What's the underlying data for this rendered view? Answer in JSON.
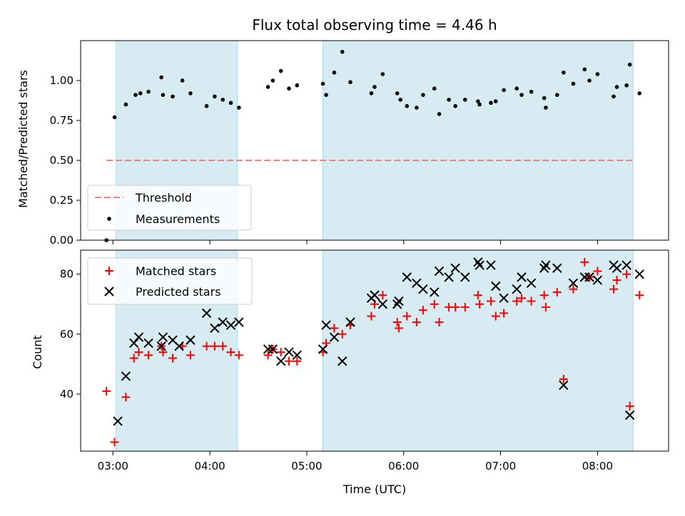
{
  "chart_data": {
    "type": "scatter",
    "title": "Flux total observing time = 4.46 h",
    "xlabel": "Time (UTC)",
    "x_tick_labels": [
      "03:00",
      "04:00",
      "05:00",
      "06:00",
      "07:00",
      "08:00"
    ],
    "x_ticks": [
      "03:00",
      "04:00",
      "05:00",
      "06:00",
      "07:00",
      "08:00"
    ],
    "xlim": [
      "02:40",
      "08:44"
    ],
    "shaded_intervals": [
      [
        "03:02",
        "04:17"
      ],
      [
        "05:10",
        "08:22"
      ]
    ],
    "shade_color": "#add8e6",
    "top_panel": {
      "ylabel": "Matched/Predicted stars",
      "ylim": [
        0,
        1.25
      ],
      "y_tick_labels": [
        "0.00",
        "0.25",
        "0.50",
        "0.75",
        "1.00"
      ],
      "y_ticks": [
        0,
        0.25,
        0.5,
        0.75,
        1.0
      ],
      "threshold": {
        "name": "Threshold",
        "value": 0.5,
        "x_range": [
          "02:56",
          "08:22"
        ],
        "color": "#f08080"
      },
      "legend": {
        "placement": "lower-left",
        "entries": [
          "Threshold",
          "Measurements"
        ]
      },
      "series": [
        {
          "name": "Measurements",
          "color": "#000000",
          "marker": "dot",
          "points": [
            [
              "02:56",
              0.0
            ],
            [
              "03:01",
              0.77
            ],
            [
              "03:08",
              0.85
            ],
            [
              "03:14",
              0.91
            ],
            [
              "03:17",
              0.92
            ],
            [
              "03:22",
              0.93
            ],
            [
              "03:30",
              1.02
            ],
            [
              "03:31",
              0.91
            ],
            [
              "03:37",
              0.9
            ],
            [
              "03:43",
              1.0
            ],
            [
              "03:48",
              0.92
            ],
            [
              "03:58",
              0.84
            ],
            [
              "04:03",
              0.9
            ],
            [
              "04:08",
              0.88
            ],
            [
              "04:13",
              0.86
            ],
            [
              "04:18",
              0.83
            ],
            [
              "04:36",
              0.96
            ],
            [
              "04:39",
              1.0
            ],
            [
              "04:44",
              1.06
            ],
            [
              "04:49",
              0.95
            ],
            [
              "04:54",
              0.97
            ],
            [
              "05:10",
              0.98
            ],
            [
              "05:12",
              0.91
            ],
            [
              "05:17",
              1.05
            ],
            [
              "05:22",
              1.18
            ],
            [
              "05:27",
              0.99
            ],
            [
              "05:40",
              0.92
            ],
            [
              "05:42",
              0.96
            ],
            [
              "05:47",
              1.04
            ],
            [
              "05:56",
              0.92
            ],
            [
              "05:58",
              0.88
            ],
            [
              "06:02",
              0.84
            ],
            [
              "06:08",
              0.83
            ],
            [
              "06:12",
              0.91
            ],
            [
              "06:19",
              0.95
            ],
            [
              "06:22",
              0.79
            ],
            [
              "06:28",
              0.88
            ],
            [
              "06:32",
              0.84
            ],
            [
              "06:38",
              0.88
            ],
            [
              "06:46",
              0.87
            ],
            [
              "06:47",
              0.85
            ],
            [
              "06:54",
              0.86
            ],
            [
              "06:57",
              0.87
            ],
            [
              "07:02",
              0.94
            ],
            [
              "07:10",
              0.95
            ],
            [
              "07:13",
              0.91
            ],
            [
              "07:19",
              0.93
            ],
            [
              "07:27",
              0.89
            ],
            [
              "07:28",
              0.83
            ],
            [
              "07:35",
              0.91
            ],
            [
              "07:39",
              1.05
            ],
            [
              "07:45",
              0.98
            ],
            [
              "07:52",
              1.07
            ],
            [
              "07:55",
              1.0
            ],
            [
              "08:00",
              1.04
            ],
            [
              "08:10",
              0.9
            ],
            [
              "08:12",
              0.96
            ],
            [
              "08:18",
              0.97
            ],
            [
              "08:20",
              1.1
            ],
            [
              "08:26",
              0.92
            ]
          ]
        }
      ]
    },
    "bottom_panel": {
      "ylabel": "Count",
      "ylim": [
        21,
        88
      ],
      "y_tick_labels": [
        "40",
        "60",
        "80"
      ],
      "y_ticks": [
        40,
        60,
        80
      ],
      "legend": {
        "placement": "upper-left",
        "entries": [
          "Matched stars",
          "Predicted stars"
        ]
      },
      "series": [
        {
          "name": "Matched stars",
          "color": "#ff0000",
          "marker": "plus",
          "points": [
            [
              "02:56",
              41
            ],
            [
              "03:01",
              24
            ],
            [
              "03:08",
              39
            ],
            [
              "03:13",
              52
            ],
            [
              "03:16",
              54
            ],
            [
              "03:22",
              53
            ],
            [
              "03:30",
              56
            ],
            [
              "03:31",
              54
            ],
            [
              "03:37",
              52
            ],
            [
              "03:43",
              56
            ],
            [
              "03:48",
              53
            ],
            [
              "03:58",
              56
            ],
            [
              "04:03",
              56
            ],
            [
              "04:08",
              56
            ],
            [
              "04:13",
              54
            ],
            [
              "04:18",
              53
            ],
            [
              "04:36",
              53
            ],
            [
              "04:39",
              55
            ],
            [
              "04:44",
              54
            ],
            [
              "04:49",
              51
            ],
            [
              "04:54",
              51
            ],
            [
              "05:10",
              54
            ],
            [
              "05:12",
              57
            ],
            [
              "05:17",
              62
            ],
            [
              "05:22",
              60
            ],
            [
              "05:27",
              63
            ],
            [
              "05:40",
              66
            ],
            [
              "05:42",
              70
            ],
            [
              "05:47",
              73
            ],
            [
              "05:56",
              64
            ],
            [
              "05:57",
              62
            ],
            [
              "06:02",
              66
            ],
            [
              "06:08",
              64
            ],
            [
              "06:12",
              68
            ],
            [
              "06:19",
              70
            ],
            [
              "06:22",
              64
            ],
            [
              "06:28",
              69
            ],
            [
              "06:32",
              69
            ],
            [
              "06:38",
              69
            ],
            [
              "06:46",
              73
            ],
            [
              "06:47",
              70
            ],
            [
              "06:54",
              71
            ],
            [
              "06:57",
              66
            ],
            [
              "07:02",
              67
            ],
            [
              "07:10",
              71
            ],
            [
              "07:13",
              72
            ],
            [
              "07:19",
              71
            ],
            [
              "07:27",
              73
            ],
            [
              "07:28",
              69
            ],
            [
              "07:35",
              74
            ],
            [
              "07:39",
              45
            ],
            [
              "07:45",
              75
            ],
            [
              "07:52",
              84
            ],
            [
              "07:55",
              79
            ],
            [
              "08:00",
              81
            ],
            [
              "08:10",
              75
            ],
            [
              "08:12",
              78
            ],
            [
              "08:18",
              80
            ],
            [
              "08:20",
              36
            ],
            [
              "08:26",
              73
            ]
          ]
        },
        {
          "name": "Predicted stars",
          "color": "#000000",
          "marker": "x",
          "points": [
            [
              "03:03",
              31
            ],
            [
              "03:08",
              46
            ],
            [
              "03:13",
              57
            ],
            [
              "03:16",
              59
            ],
            [
              "03:22",
              57
            ],
            [
              "03:30",
              56
            ],
            [
              "03:31",
              59
            ],
            [
              "03:37",
              58
            ],
            [
              "03:41",
              56
            ],
            [
              "03:48",
              58
            ],
            [
              "03:58",
              67
            ],
            [
              "04:03",
              62
            ],
            [
              "04:08",
              64
            ],
            [
              "04:13",
              63
            ],
            [
              "04:18",
              64
            ],
            [
              "04:36",
              55
            ],
            [
              "04:39",
              55
            ],
            [
              "04:44",
              51
            ],
            [
              "04:49",
              54
            ],
            [
              "04:54",
              53
            ],
            [
              "05:10",
              55
            ],
            [
              "05:12",
              63
            ],
            [
              "05:17",
              59
            ],
            [
              "05:22",
              51
            ],
            [
              "05:27",
              64
            ],
            [
              "05:40",
              72
            ],
            [
              "05:42",
              73
            ],
            [
              "05:47",
              70
            ],
            [
              "05:56",
              70
            ],
            [
              "05:57",
              71
            ],
            [
              "06:02",
              79
            ],
            [
              "06:08",
              77
            ],
            [
              "06:12",
              75
            ],
            [
              "06:19",
              74
            ],
            [
              "06:22",
              81
            ],
            [
              "06:28",
              79
            ],
            [
              "06:32",
              82
            ],
            [
              "06:38",
              79
            ],
            [
              "06:46",
              84
            ],
            [
              "06:47",
              83
            ],
            [
              "06:54",
              83
            ],
            [
              "06:57",
              76
            ],
            [
              "07:02",
              72
            ],
            [
              "07:10",
              75
            ],
            [
              "07:13",
              79
            ],
            [
              "07:19",
              77
            ],
            [
              "07:27",
              82
            ],
            [
              "07:28",
              83
            ],
            [
              "07:35",
              82
            ],
            [
              "07:39",
              43
            ],
            [
              "07:45",
              77
            ],
            [
              "07:52",
              79
            ],
            [
              "07:55",
              79
            ],
            [
              "08:00",
              78
            ],
            [
              "08:10",
              83
            ],
            [
              "08:12",
              82
            ],
            [
              "08:18",
              83
            ],
            [
              "08:20",
              33
            ],
            [
              "08:26",
              80
            ]
          ]
        }
      ]
    }
  }
}
